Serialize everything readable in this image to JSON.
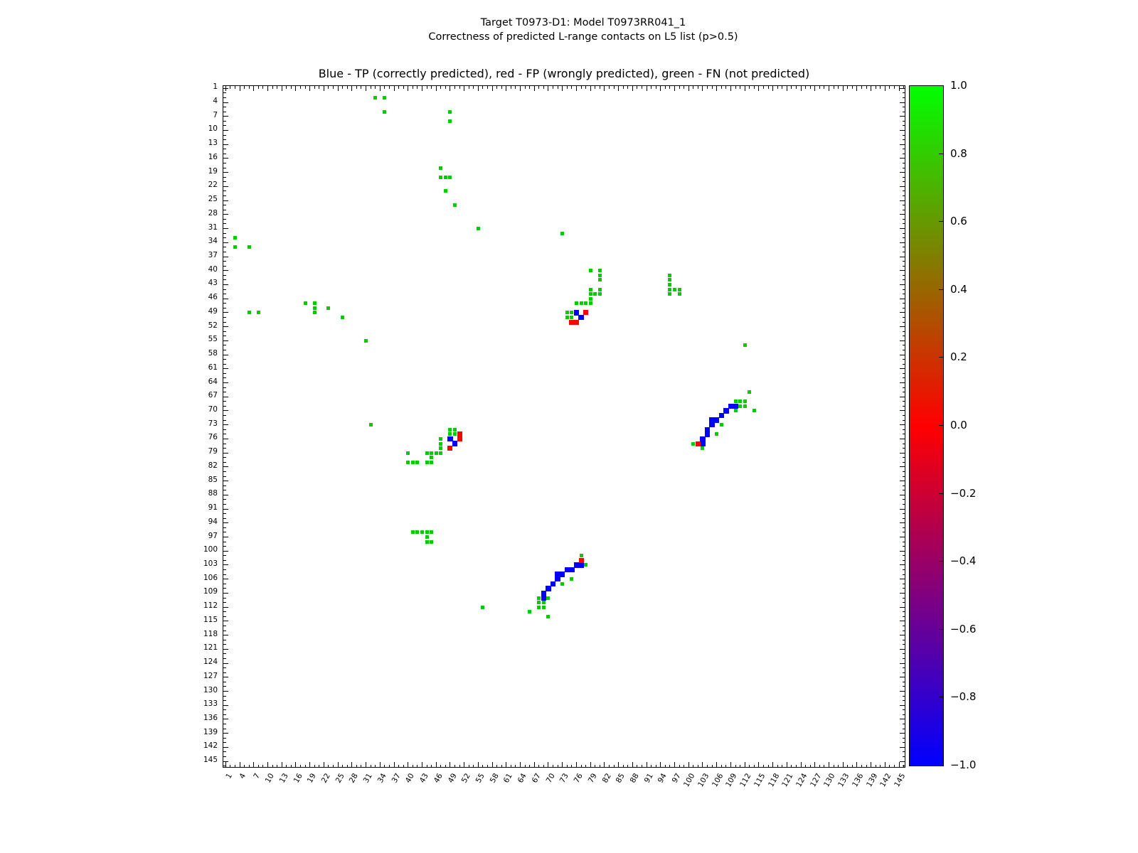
{
  "figure": {
    "suptitle_line1": "Target T0973-D1: Model T0973RR041_1",
    "suptitle_line2": "Correctness of predicted L-range contacts on L5 list (p>0.5)",
    "axes_title": "Blue - TP (correctly predicted), red - FP (wrongly predicted), green - FN (not predicted)"
  },
  "chart_data": {
    "type": "heatmap",
    "subtype": "symmetric-contact-map",
    "title": "Blue - TP (correctly predicted), red - FP (wrongly predicted), green - FN (not predicted)",
    "axis": {
      "min": 0.5,
      "max": 146.5,
      "x_tick_labels": [
        "1",
        "4",
        "7",
        "10",
        "13",
        "16",
        "19",
        "22",
        "25",
        "28",
        "31",
        "34",
        "37",
        "40",
        "43",
        "46",
        "49",
        "52",
        "55",
        "58",
        "61",
        "64",
        "67",
        "70",
        "73",
        "76",
        "79",
        "82",
        "85",
        "88",
        "91",
        "94",
        "97",
        "100",
        "103",
        "106",
        "109",
        "112",
        "115",
        "118",
        "121",
        "124",
        "127",
        "130",
        "133",
        "136",
        "139",
        "142",
        "145"
      ],
      "y_tick_labels": [
        "1",
        "4",
        "7",
        "10",
        "13",
        "16",
        "19",
        "22",
        "25",
        "28",
        "31",
        "34",
        "37",
        "40",
        "43",
        "46",
        "49",
        "52",
        "55",
        "58",
        "61",
        "64",
        "67",
        "70",
        "73",
        "76",
        "79",
        "82",
        "85",
        "88",
        "91",
        "94",
        "97",
        "100",
        "103",
        "106",
        "109",
        "112",
        "115",
        "118",
        "121",
        "124",
        "127",
        "130",
        "133",
        "136",
        "139",
        "142",
        "145"
      ],
      "minor_tick_every": 1,
      "grid": false
    },
    "symmetric_mirror": true,
    "series": [
      {
        "name": "FN (not predicted)",
        "color": "#00cc00",
        "cells": [
          [
            3,
            33
          ],
          [
            3,
            35
          ],
          [
            6,
            35
          ],
          [
            6,
            49
          ],
          [
            8,
            49
          ],
          [
            18,
            47
          ],
          [
            20,
            47
          ],
          [
            20,
            48
          ],
          [
            20,
            49
          ],
          [
            23,
            48
          ],
          [
            26,
            50
          ],
          [
            31,
            55
          ],
          [
            32,
            73
          ],
          [
            40,
            79
          ],
          [
            40,
            81
          ],
          [
            41,
            81
          ],
          [
            42,
            81
          ],
          [
            44,
            79
          ],
          [
            44,
            81
          ],
          [
            45,
            79
          ],
          [
            45,
            80
          ],
          [
            45,
            81
          ],
          [
            46,
            79
          ],
          [
            47,
            76
          ],
          [
            47,
            77
          ],
          [
            47,
            78
          ],
          [
            47,
            79
          ],
          [
            49,
            74
          ],
          [
            49,
            75
          ],
          [
            50,
            74
          ],
          [
            50,
            75
          ],
          [
            41,
            96
          ],
          [
            42,
            96
          ],
          [
            43,
            96
          ],
          [
            44,
            96
          ],
          [
            45,
            96
          ],
          [
            44,
            97
          ],
          [
            44,
            98
          ],
          [
            45,
            98
          ],
          [
            56,
            112
          ],
          [
            66,
            113
          ],
          [
            68,
            110
          ],
          [
            68,
            111
          ],
          [
            68,
            112
          ],
          [
            69,
            111
          ],
          [
            69,
            112
          ],
          [
            70,
            110
          ],
          [
            70,
            114
          ],
          [
            73,
            107
          ],
          [
            75,
            106
          ],
          [
            77,
            101
          ],
          [
            78,
            103
          ]
        ]
      },
      {
        "name": "TP (correctly predicted)",
        "color": "#0000ff",
        "cells": [
          [
            49,
            76
          ],
          [
            50,
            77
          ],
          [
            69,
            109
          ],
          [
            69,
            110
          ],
          [
            70,
            108
          ],
          [
            71,
            107
          ],
          [
            72,
            105
          ],
          [
            72,
            106
          ],
          [
            73,
            105
          ],
          [
            74,
            104
          ],
          [
            75,
            104
          ],
          [
            76,
            103
          ],
          [
            77,
            103
          ]
        ]
      },
      {
        "name": "FP (wrongly predicted)",
        "color": "#ff0000",
        "cells": [
          [
            49,
            78
          ],
          [
            51,
            75
          ],
          [
            51,
            76
          ],
          [
            77,
            102
          ]
        ]
      }
    ],
    "colorbar": {
      "min": -1.0,
      "max": 1.0,
      "tick_labels": [
        "1.0",
        "0.8",
        "0.6",
        "0.4",
        "0.2",
        "0.0",
        "−0.2",
        "−0.4",
        "−0.6",
        "−0.8",
        "−1.0"
      ],
      "gradient_top_to_bottom": [
        "#00ff00",
        "#ff0000",
        "#0000ff"
      ]
    }
  }
}
